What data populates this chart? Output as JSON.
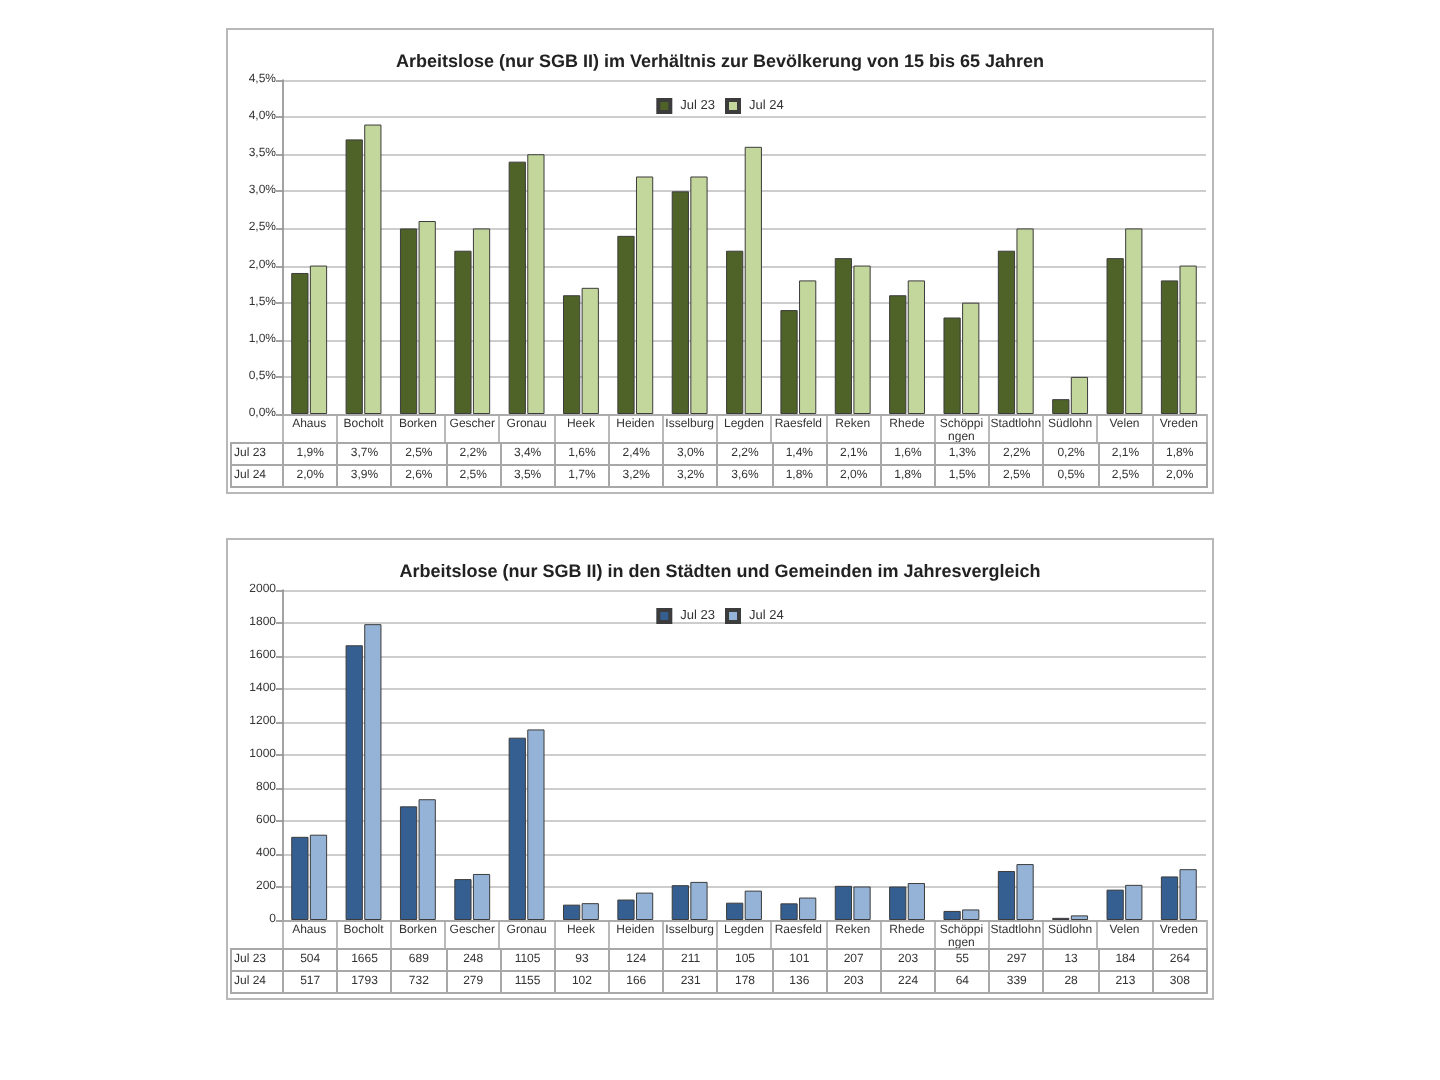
{
  "chart_data": [
    {
      "type": "bar",
      "title": "Arbeitslose (nur SGB II) im Verhältnis zur Bevölkerung von 15 bis 65 Jahren",
      "categories": [
        "Ahaus",
        "Bocholt",
        "Borken",
        "Gescher",
        "Gronau",
        "Heek",
        "Heiden",
        "Isselburg",
        "Legden",
        "Raesfeld",
        "Reken",
        "Rhede",
        "Schöppingen",
        "Stadtlohn",
        "Südlohn",
        "Velen",
        "Vreden"
      ],
      "series": [
        {
          "name": "Jul 23",
          "color": "#4f6228",
          "values": [
            1.9,
            3.7,
            2.5,
            2.2,
            3.4,
            1.6,
            2.4,
            3.0,
            2.2,
            1.4,
            2.1,
            1.6,
            1.3,
            2.2,
            0.2,
            2.1,
            1.8
          ],
          "value_labels": [
            "1,9%",
            "3,7%",
            "2,5%",
            "2,2%",
            "3,4%",
            "1,6%",
            "2,4%",
            "3,0%",
            "2,2%",
            "1,4%",
            "2,1%",
            "1,6%",
            "1,3%",
            "2,2%",
            "0,2%",
            "2,1%",
            "1,8%"
          ]
        },
        {
          "name": "Jul 24",
          "color": "#c3d69b",
          "values": [
            2.0,
            3.9,
            2.6,
            2.5,
            3.5,
            1.7,
            3.2,
            3.2,
            3.6,
            1.8,
            2.0,
            1.8,
            1.5,
            2.5,
            0.5,
            2.5,
            2.0
          ],
          "value_labels": [
            "2,0%",
            "3,9%",
            "2,6%",
            "2,5%",
            "3,5%",
            "1,7%",
            "3,2%",
            "3,2%",
            "3,6%",
            "1,8%",
            "2,0%",
            "1,8%",
            "1,5%",
            "2,5%",
            "0,5%",
            "2,5%",
            "2,0%"
          ]
        }
      ],
      "ylim": [
        0,
        4.5
      ],
      "yticks": [
        {
          "value": 0,
          "label": "0,0%"
        },
        {
          "value": 0.5,
          "label": "0,5%"
        },
        {
          "value": 1,
          "label": "1,0%"
        },
        {
          "value": 1.5,
          "label": "1,5%"
        },
        {
          "value": 2,
          "label": "2,0%"
        },
        {
          "value": 2.5,
          "label": "2,5%"
        },
        {
          "value": 3,
          "label": "3,0%"
        },
        {
          "value": 3.5,
          "label": "3,5%"
        },
        {
          "value": 4,
          "label": "4,0%"
        },
        {
          "value": 4.5,
          "label": "4,5%"
        }
      ],
      "grid": "y",
      "legend": "top"
    },
    {
      "type": "bar",
      "title": "Arbeitslose (nur SGB II) in den Städten und Gemeinden im Jahresvergleich",
      "categories": [
        "Ahaus",
        "Bocholt",
        "Borken",
        "Gescher",
        "Gronau",
        "Heek",
        "Heiden",
        "Isselburg",
        "Legden",
        "Raesfeld",
        "Reken",
        "Rhede",
        "Schöppingen",
        "Stadtlohn",
        "Südlohn",
        "Velen",
        "Vreden"
      ],
      "series": [
        {
          "name": "Jul 23",
          "color": "#365f91",
          "values": [
            504,
            1665,
            689,
            248,
            1105,
            93,
            124,
            211,
            105,
            101,
            207,
            203,
            55,
            297,
            13,
            184,
            264
          ]
        },
        {
          "name": "Jul 24",
          "color": "#95b3d7",
          "values": [
            517,
            1793,
            732,
            279,
            1155,
            102,
            166,
            231,
            178,
            136,
            203,
            224,
            64,
            339,
            28,
            213,
            308
          ]
        }
      ],
      "ylim": [
        0,
        2000
      ],
      "yticks": [
        0,
        200,
        400,
        600,
        800,
        1000,
        1200,
        1400,
        1600,
        1800,
        2000
      ],
      "grid": "y",
      "legend": "top",
      "data_labels": true
    }
  ]
}
